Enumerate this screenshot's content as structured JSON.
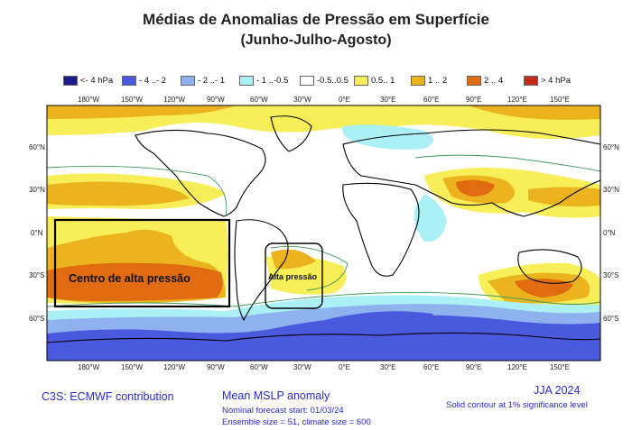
{
  "title_line1": "Médias de Anomalias de Pressão em Superfície",
  "title_line2": "(Junho-Julho-Agosto)",
  "legend": [
    {
      "label": "<- 4 hPa",
      "color": "#1a1a8c"
    },
    {
      "label": "- 4 ..- 2",
      "color": "#4a5adf"
    },
    {
      "label": "- 2 ..- 1",
      "color": "#8fb2ee"
    },
    {
      "label": "- 1 ..-0.5",
      "color": "#aaf0f4"
    },
    {
      "label": "-0.5..0.5",
      "color": "#ffffff"
    },
    {
      "label": "0.5.. 1",
      "color": "#f7ee58"
    },
    {
      "label": "1 .. 2",
      "color": "#ebb41f"
    },
    {
      "label": "2 .. 4",
      "color": "#e06b10"
    },
    {
      "label": "> 4 hPa",
      "color": "#c22b1a"
    }
  ],
  "lon_labels": [
    "180°W",
    "150°W",
    "120°W",
    "90°W",
    "60°W",
    "30°W",
    "0°E",
    "30°E",
    "60°E",
    "90°E",
    "120°E",
    "150°E"
  ],
  "lat_labels": [
    "60°N",
    "30°N",
    "0°N",
    "30°S",
    "60°S"
  ],
  "annotations": {
    "pacific_box": "Centro de alta pressão",
    "atlantic_box": "Alta pressão"
  },
  "footer": {
    "contribution": "C3S: ECMWF contribution",
    "product": "Mean MSLP anomaly",
    "forecast_start": "Nominal forecast start: 01/03/24",
    "ensemble": "Ensemble size = 51, climate size = 600",
    "season": "JJA 2024",
    "significance": "Solid contour at 1% significance level"
  }
}
